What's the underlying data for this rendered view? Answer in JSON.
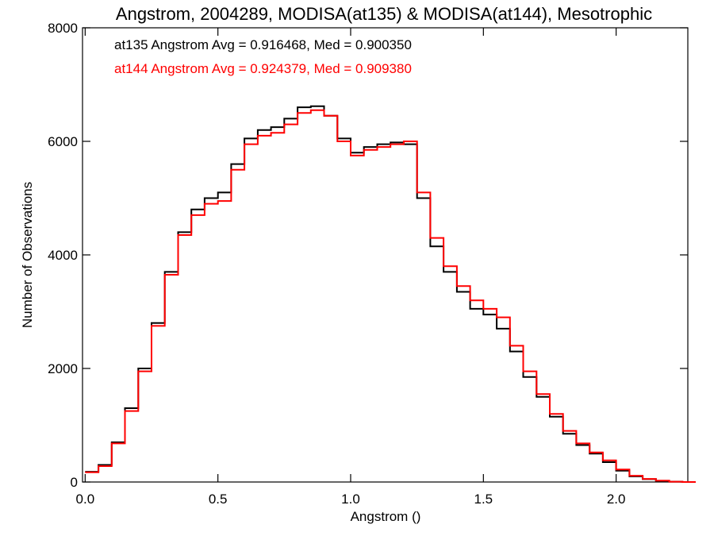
{
  "chart_data": {
    "type": "line",
    "title": "Angstrom, 2004289, MODISA(at135) & MODISA(at144), Mesotrophic",
    "xlabel": "Angstrom ()",
    "ylabel": "Number of Observations",
    "xlim": [
      -0.01,
      2.27
    ],
    "ylim": [
      0,
      8000
    ],
    "xticks": [
      0.0,
      0.5,
      1.0,
      1.5,
      2.0
    ],
    "xtick_labels": [
      "0.0",
      "0.5",
      "1.0",
      "1.5",
      "2.0"
    ],
    "yticks": [
      0,
      2000,
      4000,
      6000,
      8000
    ],
    "ytick_labels": [
      "0",
      "2000",
      "4000",
      "6000",
      "8000"
    ],
    "grid": false,
    "legend_placement": "top-left",
    "step": true,
    "x": [
      0.0,
      0.05,
      0.1,
      0.15,
      0.2,
      0.25,
      0.3,
      0.35,
      0.4,
      0.45,
      0.5,
      0.55,
      0.6,
      0.65,
      0.7,
      0.75,
      0.8,
      0.85,
      0.9,
      0.95,
      1.0,
      1.05,
      1.1,
      1.15,
      1.2,
      1.25,
      1.3,
      1.35,
      1.4,
      1.45,
      1.5,
      1.55,
      1.6,
      1.65,
      1.7,
      1.75,
      1.8,
      1.85,
      1.9,
      1.95,
      2.0,
      2.05,
      2.1,
      2.15,
      2.2,
      2.25
    ],
    "series": [
      {
        "name": "at135",
        "color": "#000000",
        "legend": "at135 Angstrom Avg = 0.916468, Med = 0.900350",
        "values": [
          180,
          300,
          700,
          1300,
          2000,
          2800,
          3700,
          4400,
          4800,
          5000,
          5100,
          5600,
          6050,
          6200,
          6250,
          6400,
          6600,
          6620,
          6450,
          6050,
          5800,
          5900,
          5950,
          5980,
          5950,
          5000,
          4150,
          3700,
          3350,
          3050,
          2950,
          2700,
          2300,
          1850,
          1500,
          1150,
          850,
          650,
          500,
          350,
          200,
          100,
          50,
          20,
          5,
          0
        ]
      },
      {
        "name": "at144",
        "color": "#ff0000",
        "legend": "at144 Angstrom Avg = 0.924379, Med = 0.909380",
        "values": [
          170,
          280,
          680,
          1250,
          1950,
          2750,
          3650,
          4350,
          4700,
          4900,
          4950,
          5500,
          5950,
          6100,
          6150,
          6300,
          6500,
          6550,
          6450,
          6000,
          5750,
          5850,
          5900,
          5950,
          6000,
          5100,
          4300,
          3800,
          3450,
          3200,
          3050,
          2900,
          2400,
          1950,
          1550,
          1200,
          900,
          680,
          520,
          380,
          220,
          110,
          55,
          25,
          5,
          0
        ]
      }
    ]
  }
}
